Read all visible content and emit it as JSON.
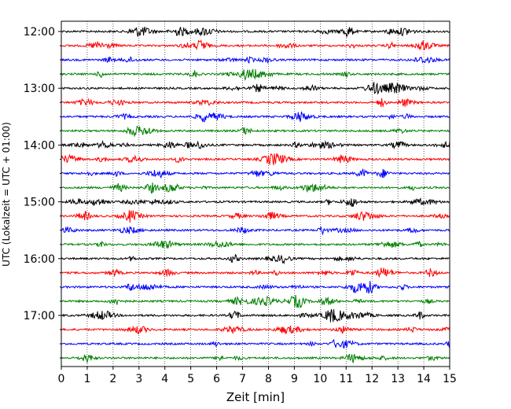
{
  "chart_data": {
    "type": "line",
    "title": "",
    "xlabel": "Zeit  [min]",
    "ylabel": "UTC (Lokalzeit = UTC + 01:00)",
    "xlim": [
      0,
      15
    ],
    "x_ticks": [
      0,
      1,
      2,
      3,
      4,
      5,
      6,
      7,
      8,
      9,
      10,
      11,
      12,
      13,
      14,
      15
    ],
    "y_tick_labels": [
      "12:00",
      "13:00",
      "14:00",
      "15:00",
      "16:00",
      "17:00"
    ],
    "grid": "vertical dotted",
    "colors": [
      "#000000",
      "#ff0000",
      "#0000ff",
      "#008000"
    ],
    "traces": [
      {
        "start": "12:00",
        "color": "#000000"
      },
      {
        "start": "12:15",
        "color": "#ff0000"
      },
      {
        "start": "12:30",
        "color": "#0000ff"
      },
      {
        "start": "12:45",
        "color": "#008000"
      },
      {
        "start": "13:00",
        "color": "#000000"
      },
      {
        "start": "13:15",
        "color": "#ff0000"
      },
      {
        "start": "13:30",
        "color": "#0000ff"
      },
      {
        "start": "13:45",
        "color": "#008000"
      },
      {
        "start": "14:00",
        "color": "#000000"
      },
      {
        "start": "14:15",
        "color": "#ff0000"
      },
      {
        "start": "14:30",
        "color": "#0000ff"
      },
      {
        "start": "14:45",
        "color": "#008000"
      },
      {
        "start": "15:00",
        "color": "#000000"
      },
      {
        "start": "15:15",
        "color": "#ff0000"
      },
      {
        "start": "15:30",
        "color": "#0000ff"
      },
      {
        "start": "15:45",
        "color": "#008000"
      },
      {
        "start": "16:00",
        "color": "#000000"
      },
      {
        "start": "16:15",
        "color": "#ff0000"
      },
      {
        "start": "16:30",
        "color": "#0000ff"
      },
      {
        "start": "16:45",
        "color": "#008000"
      },
      {
        "start": "17:00",
        "color": "#000000"
      },
      {
        "start": "17:15",
        "color": "#ff0000"
      },
      {
        "start": "17:30",
        "color": "#0000ff"
      },
      {
        "start": "17:45",
        "color": "#008000"
      }
    ]
  }
}
